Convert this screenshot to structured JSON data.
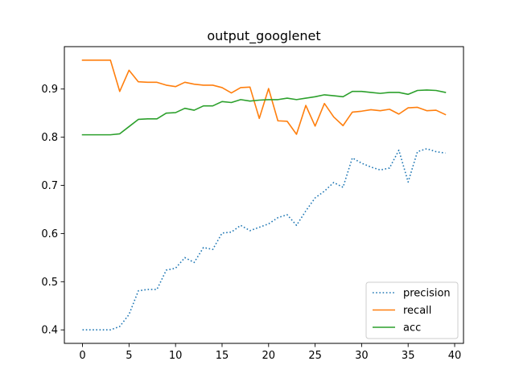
{
  "chart_data": {
    "type": "line",
    "title": "output_googlenet",
    "xlabel": "",
    "ylabel": "",
    "xlim": [
      -1.95,
      40.95
    ],
    "ylim": [
      0.372,
      0.988
    ],
    "xticks": [
      0,
      5,
      10,
      15,
      20,
      25,
      30,
      35,
      40
    ],
    "yticks": [
      0.4,
      0.5,
      0.6,
      0.7,
      0.8,
      0.9
    ],
    "ytick_labels": [
      "0.4",
      "0.5",
      "0.6",
      "0.7",
      "0.8",
      "0.9"
    ],
    "grid": false,
    "legend_position": "lower-right",
    "x": [
      0,
      1,
      2,
      3,
      4,
      5,
      6,
      7,
      8,
      9,
      10,
      11,
      12,
      13,
      14,
      15,
      16,
      17,
      18,
      19,
      20,
      21,
      22,
      23,
      24,
      25,
      26,
      27,
      28,
      29,
      30,
      31,
      32,
      33,
      34,
      35,
      36,
      37,
      38,
      39
    ],
    "series": [
      {
        "name": "precision",
        "color": "#1f77b4",
        "style": "dotted",
        "values": [
          0.4,
          0.4,
          0.4,
          0.4,
          0.407,
          0.432,
          0.481,
          0.484,
          0.484,
          0.524,
          0.528,
          0.55,
          0.54,
          0.571,
          0.567,
          0.601,
          0.603,
          0.617,
          0.606,
          0.613,
          0.62,
          0.633,
          0.639,
          0.617,
          0.647,
          0.674,
          0.688,
          0.706,
          0.696,
          0.757,
          0.746,
          0.738,
          0.732,
          0.736,
          0.773,
          0.707,
          0.77,
          0.776,
          0.77,
          0.767
        ]
      },
      {
        "name": "recall",
        "color": "#ff7f0e",
        "style": "solid",
        "values": [
          0.96,
          0.96,
          0.96,
          0.96,
          0.895,
          0.939,
          0.915,
          0.914,
          0.914,
          0.908,
          0.905,
          0.914,
          0.91,
          0.908,
          0.908,
          0.903,
          0.892,
          0.903,
          0.904,
          0.839,
          0.901,
          0.834,
          0.833,
          0.806,
          0.866,
          0.823,
          0.87,
          0.842,
          0.824,
          0.852,
          0.854,
          0.857,
          0.855,
          0.858,
          0.848,
          0.861,
          0.862,
          0.855,
          0.856,
          0.847
        ]
      },
      {
        "name": "acc",
        "color": "#2ca02c",
        "style": "solid",
        "values": [
          0.805,
          0.805,
          0.805,
          0.805,
          0.807,
          0.822,
          0.837,
          0.838,
          0.838,
          0.85,
          0.851,
          0.86,
          0.856,
          0.865,
          0.865,
          0.874,
          0.872,
          0.878,
          0.875,
          0.877,
          0.878,
          0.878,
          0.881,
          0.878,
          0.881,
          0.884,
          0.888,
          0.886,
          0.884,
          0.895,
          0.895,
          0.893,
          0.891,
          0.893,
          0.893,
          0.889,
          0.897,
          0.898,
          0.897,
          0.893
        ]
      }
    ]
  }
}
